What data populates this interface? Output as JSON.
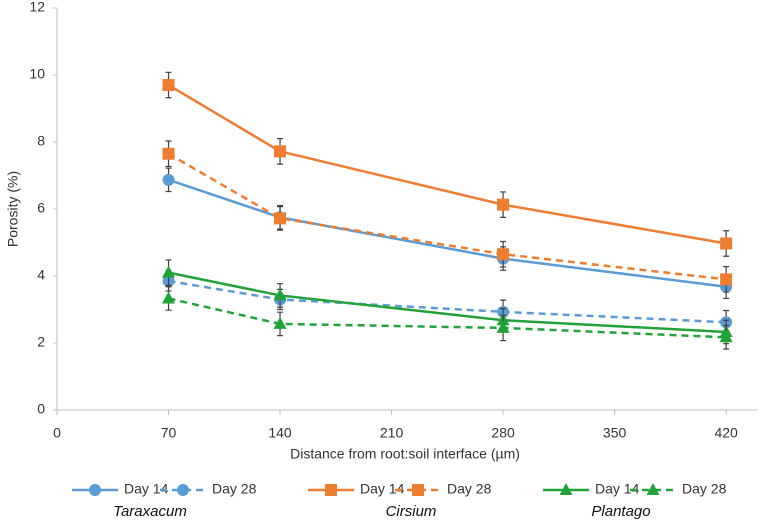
{
  "chart_data": {
    "type": "line",
    "x_label": "Distance from root:soil interface (µm)",
    "y_label": "Porosity (%)",
    "x": [
      70,
      140,
      280,
      420
    ],
    "xlim": [
      0,
      440
    ],
    "xticks": [
      0,
      70,
      140,
      210,
      280,
      350,
      420
    ],
    "ylim": [
      0,
      12
    ],
    "yticks": [
      0,
      2,
      4,
      6,
      8,
      10,
      12
    ],
    "groups": [
      "Taraxacum",
      "Cirsium",
      "Plantago"
    ],
    "series": [
      {
        "name": "Day 14",
        "group": 0,
        "color": "#5b9bd5",
        "dash": false,
        "marker": "circle",
        "values": [
          6.87,
          5.75,
          4.52,
          3.68
        ],
        "errors": [
          0.35,
          0.35,
          0.35,
          0.35
        ]
      },
      {
        "name": "Day 28",
        "group": 0,
        "color": "#5b9bd5",
        "dash": true,
        "marker": "circle",
        "values": [
          3.85,
          3.3,
          2.93,
          2.62
        ],
        "errors": [
          0.3,
          0.3,
          0.35,
          0.35
        ]
      },
      {
        "name": "Day 14",
        "group": 1,
        "color": "#ed7d31",
        "dash": false,
        "marker": "square",
        "values": [
          9.7,
          7.72,
          6.13,
          4.97
        ],
        "errors": [
          0.38,
          0.38,
          0.38,
          0.38
        ]
      },
      {
        "name": "Day 28",
        "group": 1,
        "color": "#ed7d31",
        "dash": true,
        "marker": "square",
        "values": [
          7.65,
          5.72,
          4.65,
          3.9
        ],
        "errors": [
          0.38,
          0.35,
          0.38,
          0.38
        ]
      },
      {
        "name": "Day 14",
        "group": 2,
        "color": "#22a33a",
        "dash": false,
        "marker": "triangle",
        "values": [
          4.1,
          3.42,
          2.68,
          2.33
        ],
        "errors": [
          0.38,
          0.35,
          0.35,
          0.35
        ]
      },
      {
        "name": "Day 28",
        "group": 2,
        "color": "#22a33a",
        "dash": true,
        "marker": "triangle",
        "values": [
          3.33,
          2.57,
          2.45,
          2.17
        ],
        "errors": [
          0.35,
          0.35,
          0.38,
          0.35
        ]
      }
    ]
  }
}
